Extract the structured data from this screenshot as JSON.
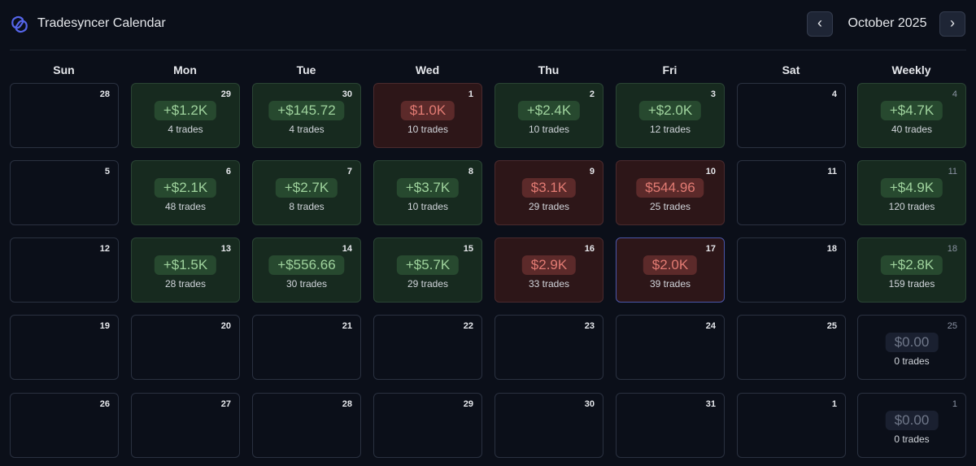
{
  "app": {
    "title": "Tradesyncer Calendar"
  },
  "nav": {
    "month_label": "October 2025",
    "prev_icon": "‹",
    "next_icon": "›"
  },
  "day_headers": [
    "Sun",
    "Mon",
    "Tue",
    "Wed",
    "Thu",
    "Fri",
    "Sat",
    "Weekly"
  ],
  "colors": {
    "positive": "#9fd39d",
    "negative": "#e27b73",
    "today_border": "#4b56a8",
    "accent": "#4f5bd5"
  },
  "weeks": [
    [
      {
        "day": "28"
      },
      {
        "day": "29",
        "pnl": "+$1.2K",
        "trades": "4 trades",
        "status": "pos"
      },
      {
        "day": "30",
        "pnl": "+$145.72",
        "trades": "4 trades",
        "status": "pos"
      },
      {
        "day": "1",
        "pnl": "$1.0K",
        "trades": "10 trades",
        "status": "neg"
      },
      {
        "day": "2",
        "pnl": "+$2.4K",
        "trades": "10 trades",
        "status": "pos"
      },
      {
        "day": "3",
        "pnl": "+$2.0K",
        "trades": "12 trades",
        "status": "pos"
      },
      {
        "day": "4"
      },
      {
        "day": "4",
        "pnl": "+$4.7K",
        "trades": "40 trades",
        "status": "pos",
        "weekly": true
      }
    ],
    [
      {
        "day": "5"
      },
      {
        "day": "6",
        "pnl": "+$2.1K",
        "trades": "48 trades",
        "status": "pos"
      },
      {
        "day": "7",
        "pnl": "+$2.7K",
        "trades": "8 trades",
        "status": "pos"
      },
      {
        "day": "8",
        "pnl": "+$3.7K",
        "trades": "10 trades",
        "status": "pos"
      },
      {
        "day": "9",
        "pnl": "$3.1K",
        "trades": "29 trades",
        "status": "neg"
      },
      {
        "day": "10",
        "pnl": "$544.96",
        "trades": "25 trades",
        "status": "neg"
      },
      {
        "day": "11"
      },
      {
        "day": "11",
        "pnl": "+$4.9K",
        "trades": "120 trades",
        "status": "pos",
        "weekly": true
      }
    ],
    [
      {
        "day": "12"
      },
      {
        "day": "13",
        "pnl": "+$1.5K",
        "trades": "28 trades",
        "status": "pos"
      },
      {
        "day": "14",
        "pnl": "+$556.66",
        "trades": "30 trades",
        "status": "pos"
      },
      {
        "day": "15",
        "pnl": "+$5.7K",
        "trades": "29 trades",
        "status": "pos"
      },
      {
        "day": "16",
        "pnl": "$2.9K",
        "trades": "33 trades",
        "status": "neg"
      },
      {
        "day": "17",
        "pnl": "$2.0K",
        "trades": "39 trades",
        "status": "neg",
        "today": true
      },
      {
        "day": "18"
      },
      {
        "day": "18",
        "pnl": "+$2.8K",
        "trades": "159 trades",
        "status": "pos",
        "weekly": true
      }
    ],
    [
      {
        "day": "19"
      },
      {
        "day": "20"
      },
      {
        "day": "21"
      },
      {
        "day": "22"
      },
      {
        "day": "23"
      },
      {
        "day": "24"
      },
      {
        "day": "25"
      },
      {
        "day": "25",
        "pnl": "$0.00",
        "trades": "0 trades",
        "status": "zero",
        "weekly": true
      }
    ],
    [
      {
        "day": "26"
      },
      {
        "day": "27"
      },
      {
        "day": "28"
      },
      {
        "day": "29"
      },
      {
        "day": "30"
      },
      {
        "day": "31"
      },
      {
        "day": "1"
      },
      {
        "day": "1",
        "pnl": "$0.00",
        "trades": "0 trades",
        "status": "zero",
        "weekly": true
      }
    ]
  ]
}
